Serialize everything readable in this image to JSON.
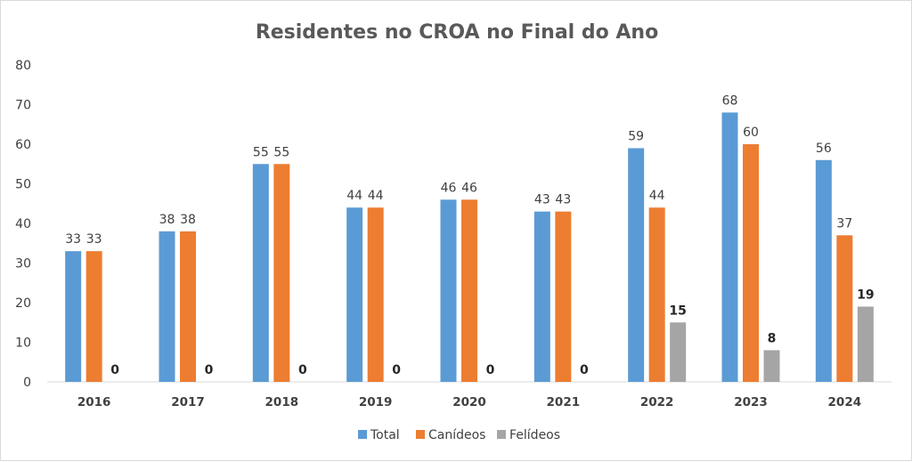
{
  "chart_data": {
    "type": "bar",
    "title": "Residentes no CROA no Final do Ano",
    "xlabel": "",
    "ylabel": "",
    "ylim": [
      0,
      80
    ],
    "yticks": [
      "0",
      "10",
      "20",
      "30",
      "40",
      "50",
      "60",
      "70",
      "80"
    ],
    "grid": false,
    "legend_position": "bottom",
    "categories": [
      "2016",
      "2017",
      "2018",
      "2019",
      "2020",
      "2021",
      "2022",
      "2023",
      "2024"
    ],
    "series": [
      {
        "name": "Total",
        "color": "#5b9bd5",
        "label_bold": false,
        "values": [
          33,
          38,
          55,
          44,
          46,
          43,
          59,
          68,
          56
        ]
      },
      {
        "name": "Canídeos",
        "color": "#ed7d31",
        "label_bold": false,
        "values": [
          33,
          38,
          55,
          44,
          46,
          43,
          44,
          60,
          37
        ]
      },
      {
        "name": "Felídeos",
        "color": "#a5a5a5",
        "label_bold": true,
        "values": [
          0,
          0,
          0,
          0,
          0,
          0,
          15,
          8,
          19
        ]
      }
    ]
  }
}
